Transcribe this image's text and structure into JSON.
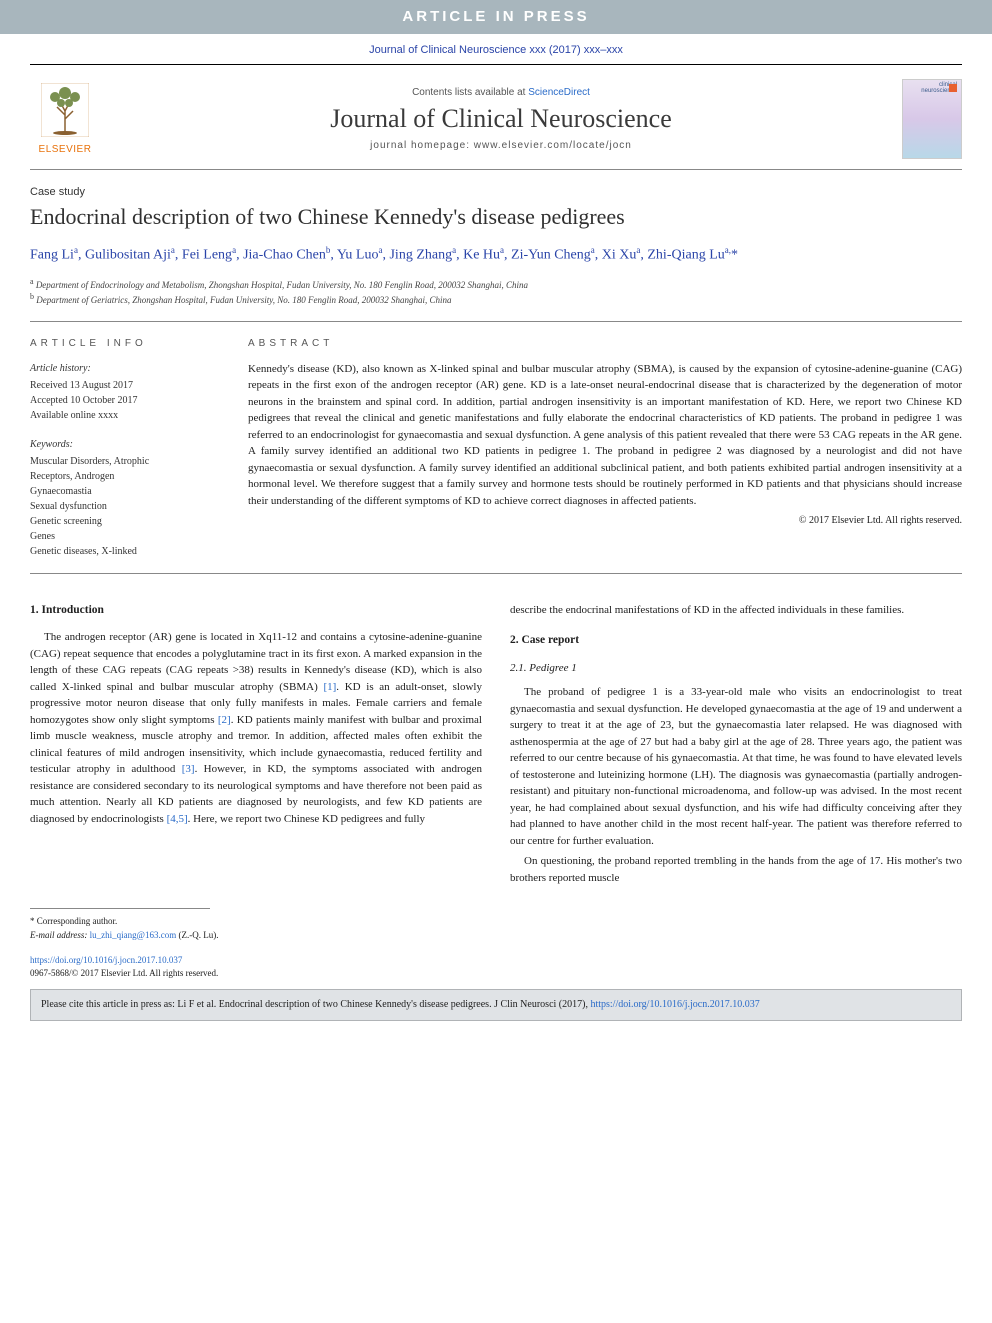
{
  "banner": {
    "text": "ARTICLE IN PRESS"
  },
  "citation_header": "Journal of Clinical Neuroscience xxx (2017) xxx–xxx",
  "masthead": {
    "contents_prefix": "Contents lists available at ",
    "contents_link": "ScienceDirect",
    "journal": "Journal of Clinical Neuroscience",
    "homepage_label": "journal homepage: ",
    "homepage_url": "www.elsevier.com/locate/jocn",
    "publisher_logo_text": "ELSEVIER",
    "cover_text": "clinical neuroscience",
    "colors": {
      "brand_orange": "#e8720c",
      "link_blue": "#2a6bc8",
      "header_blue": "#2a44a8"
    }
  },
  "article": {
    "type": "Case study",
    "title": "Endocrinal description of two Chinese Kennedy's disease pedigrees",
    "authors_html": "Fang Li<sup>a</sup>, Gulibositan Aji<sup>a</sup>, Fei Leng<sup>a</sup>, Jia-Chao Chen<sup>b</sup>, Yu Luo<sup>a</sup>, Jing Zhang<sup>a</sup>, Ke Hu<sup>a</sup>, Zi-Yun Cheng<sup>a</sup>, Xi Xu<sup>a</sup>, Zhi-Qiang Lu<sup>a,</sup><span class='star'>*</span>",
    "affiliations": [
      {
        "label": "a",
        "text": "Department of Endocrinology and Metabolism, Zhongshan Hospital, Fudan University, No. 180 Fenglin Road, 200032 Shanghai, China"
      },
      {
        "label": "b",
        "text": "Department of Geriatrics, Zhongshan Hospital, Fudan University, No. 180 Fenglin Road, 200032 Shanghai, China"
      }
    ]
  },
  "info": {
    "heading": "article info",
    "history_label": "Article history:",
    "received": "Received 13 August 2017",
    "accepted": "Accepted 10 October 2017",
    "available": "Available online xxxx",
    "keywords_label": "Keywords:",
    "keywords": [
      "Muscular Disorders, Atrophic",
      "Receptors, Androgen",
      "Gynaecomastia",
      "Sexual dysfunction",
      "Genetic screening",
      "Genes",
      "Genetic diseases, X-linked"
    ]
  },
  "abstract": {
    "heading": "abstract",
    "text": "Kennedy's disease (KD), also known as X-linked spinal and bulbar muscular atrophy (SBMA), is caused by the expansion of cytosine-adenine-guanine (CAG) repeats in the first exon of the androgen receptor (AR) gene. KD is a late-onset neural-endocrinal disease that is characterized by the degeneration of motor neurons in the brainstem and spinal cord. In addition, partial androgen insensitivity is an important manifestation of KD. Here, we report two Chinese KD pedigrees that reveal the clinical and genetic manifestations and fully elaborate the endocrinal characteristics of KD patients. The proband in pedigree 1 was referred to an endocrinologist for gynaecomastia and sexual dysfunction. A gene analysis of this patient revealed that there were 53 CAG repeats in the AR gene. A family survey identified an additional two KD patients in pedigree 1. The proband in pedigree 2 was diagnosed by a neurologist and did not have gynaecomastia or sexual dysfunction. A family survey identified an additional subclinical patient, and both patients exhibited partial androgen insensitivity at a hormonal level. We therefore suggest that a family survey and hormone tests should be routinely performed in KD patients and that physicians should increase their understanding of the different symptoms of KD to achieve correct diagnoses in affected patients.",
    "copyright": "© 2017 Elsevier Ltd. All rights reserved."
  },
  "sections": {
    "s1_head": "1. Introduction",
    "s1_p1": "The androgen receptor (AR) gene is located in Xq11-12 and contains a cytosine-adenine-guanine (CAG) repeat sequence that encodes a polyglutamine tract in its first exon. A marked expansion in the length of these CAG repeats (CAG repeats >38) results in Kennedy's disease (KD), which is also called X-linked spinal and bulbar muscular atrophy (SBMA) [1]. KD is an adult-onset, slowly progressive motor neuron disease that only fully manifests in males. Female carriers and female homozygotes show only slight symptoms [2]. KD patients mainly manifest with bulbar and proximal limb muscle weakness, muscle atrophy and tremor. In addition, affected males often exhibit the clinical features of mild androgen insensitivity, which include gynaecomastia, reduced fertility and testicular atrophy in adulthood [3]. However, in KD, the symptoms associated with androgen resistance are considered secondary to its neurological symptoms and have therefore not been paid as much attention. Nearly all KD patients are diagnosed by neurologists, and few KD patients are diagnosed by endocrinologists [4,5]. Here, we report two Chinese KD pedigrees and fully",
    "s1_p2_tail": "describe the endocrinal manifestations of KD in the affected individuals in these families.",
    "s2_head": "2. Case report",
    "s21_head": "2.1. Pedigree 1",
    "s21_p1": "The proband of pedigree 1 is a 33-year-old male who visits an endocrinologist to treat gynaecomastia and sexual dysfunction. He developed gynaecomastia at the age of 19 and underwent a surgery to treat it at the age of 23, but the gynaecomastia later relapsed. He was diagnosed with asthenospermia at the age of 27 but had a baby girl at the age of 28. Three years ago, the patient was referred to our centre because of his gynaecomastia. At that time, he was found to have elevated levels of testosterone and luteinizing hormone (LH). The diagnosis was gynaecomastia (partially androgen-resistant) and pituitary non-functional microadenoma, and follow-up was advised. In the most recent year, he had complained about sexual dysfunction, and his wife had difficulty conceiving after they had planned to have another child in the most recent half-year. The patient was therefore referred to our centre for further evaluation.",
    "s21_p2": "On questioning, the proband reported trembling in the hands from the age of 17. His mother's two brothers reported muscle"
  },
  "footnotes": {
    "corr_label": "* Corresponding author.",
    "email_label": "E-mail address: ",
    "email": "lu_zhi_qiang@163.com",
    "email_name": " (Z.-Q. Lu)."
  },
  "doi": {
    "url": "https://doi.org/10.1016/j.jocn.2017.10.037",
    "issn_line": "0967-5868/© 2017 Elsevier Ltd. All rights reserved."
  },
  "citebox": {
    "prefix": "Please cite this article in press as: Li F et al. Endocrinal description of two Chinese Kennedy's disease pedigrees. J Clin Neurosci (2017), ",
    "url": "https://doi.org/10.1016/j.jocn.2017.10.037"
  }
}
